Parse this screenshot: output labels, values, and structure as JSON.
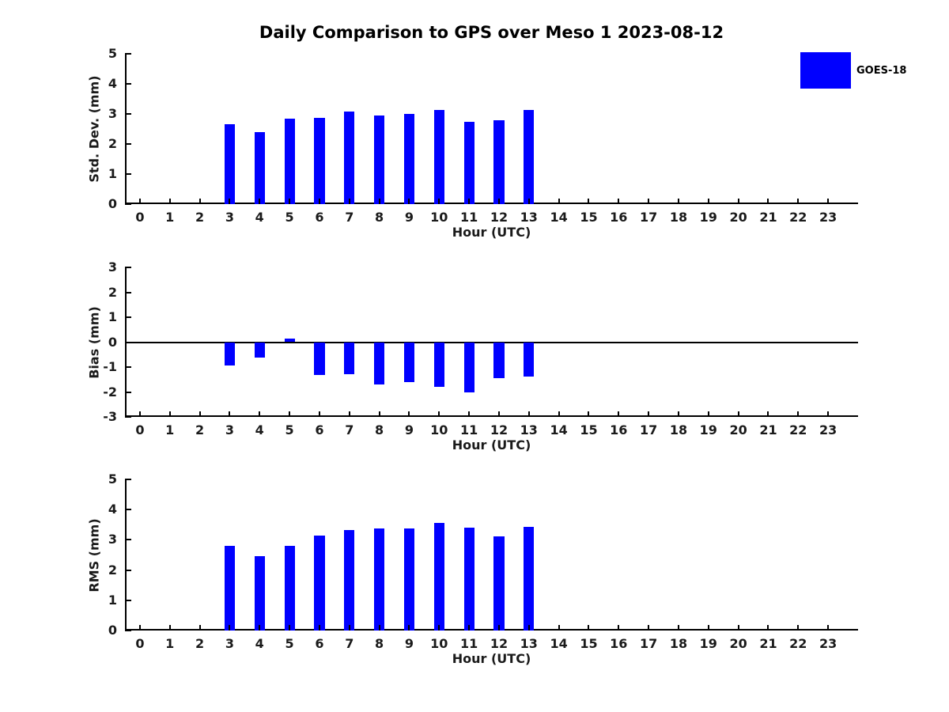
{
  "title": "Daily Comparison to GPS over Meso 1 2023-08-12",
  "legend": {
    "label": "GOES-18",
    "color": "#0000ff"
  },
  "hours": [
    "0",
    "1",
    "2",
    "3",
    "4",
    "5",
    "6",
    "7",
    "8",
    "9",
    "10",
    "11",
    "12",
    "13",
    "14",
    "15",
    "16",
    "17",
    "18",
    "19",
    "20",
    "21",
    "22",
    "23"
  ],
  "chart_data": [
    {
      "type": "bar",
      "name": "std-dev",
      "ylabel": "Std. Dev. (mm)",
      "xlabel": "Hour (UTC)",
      "ylim": [
        0,
        5
      ],
      "xlim": [
        -0.5,
        24.0
      ],
      "grid": false,
      "zero_line": false,
      "yticks": [
        5,
        4,
        3,
        2,
        1,
        0
      ],
      "series": [
        {
          "name": "GOES-18",
          "color": "#0000ff",
          "bars": [
            {
              "hour": 3,
              "value": 2.65
            },
            {
              "hour": 4,
              "value": 2.39
            },
            {
              "hour": 5,
              "value": 2.85
            },
            {
              "hour": 6,
              "value": 2.87
            },
            {
              "hour": 7,
              "value": 3.07
            },
            {
              "hour": 8,
              "value": 2.94
            },
            {
              "hour": 9,
              "value": 3.0
            },
            {
              "hour": 10,
              "value": 3.12
            },
            {
              "hour": 11,
              "value": 2.75
            },
            {
              "hour": 12,
              "value": 2.8
            },
            {
              "hour": 13,
              "value": 3.13
            }
          ]
        }
      ]
    },
    {
      "type": "bar",
      "name": "bias",
      "ylabel": "Bias (mm)",
      "xlabel": "Hour (UTC)",
      "ylim": [
        -3,
        3
      ],
      "xlim": [
        -0.5,
        24.0
      ],
      "grid": false,
      "zero_line": true,
      "yticks": [
        3,
        2,
        1,
        0,
        -1,
        -2,
        -3
      ],
      "series": [
        {
          "name": "GOES-18",
          "color": "#0000ff",
          "bars": [
            {
              "hour": 3,
              "value": -0.95
            },
            {
              "hour": 4,
              "value": -0.63
            },
            {
              "hour": 5,
              "value": 0.13
            },
            {
              "hour": 6,
              "value": -1.33
            },
            {
              "hour": 7,
              "value": -1.28
            },
            {
              "hour": 8,
              "value": -1.71
            },
            {
              "hour": 9,
              "value": -1.59
            },
            {
              "hour": 10,
              "value": -1.78
            },
            {
              "hour": 11,
              "value": -2.0
            },
            {
              "hour": 12,
              "value": -1.43
            },
            {
              "hour": 13,
              "value": -1.37
            }
          ]
        }
      ]
    },
    {
      "type": "bar",
      "name": "rms",
      "ylabel": "RMS (mm)",
      "xlabel": "Hour (UTC)",
      "ylim": [
        0,
        5
      ],
      "xlim": [
        -0.5,
        24.0
      ],
      "grid": false,
      "zero_line": false,
      "yticks": [
        5,
        4,
        3,
        2,
        1,
        0
      ],
      "series": [
        {
          "name": "GOES-18",
          "color": "#0000ff",
          "bars": [
            {
              "hour": 3,
              "value": 2.8
            },
            {
              "hour": 4,
              "value": 2.46
            },
            {
              "hour": 5,
              "value": 2.8
            },
            {
              "hour": 6,
              "value": 3.14
            },
            {
              "hour": 7,
              "value": 3.33
            },
            {
              "hour": 8,
              "value": 3.37
            },
            {
              "hour": 9,
              "value": 3.38
            },
            {
              "hour": 10,
              "value": 3.56
            },
            {
              "hour": 11,
              "value": 3.4
            },
            {
              "hour": 12,
              "value": 3.11
            },
            {
              "hour": 13,
              "value": 3.42
            }
          ]
        }
      ]
    }
  ]
}
